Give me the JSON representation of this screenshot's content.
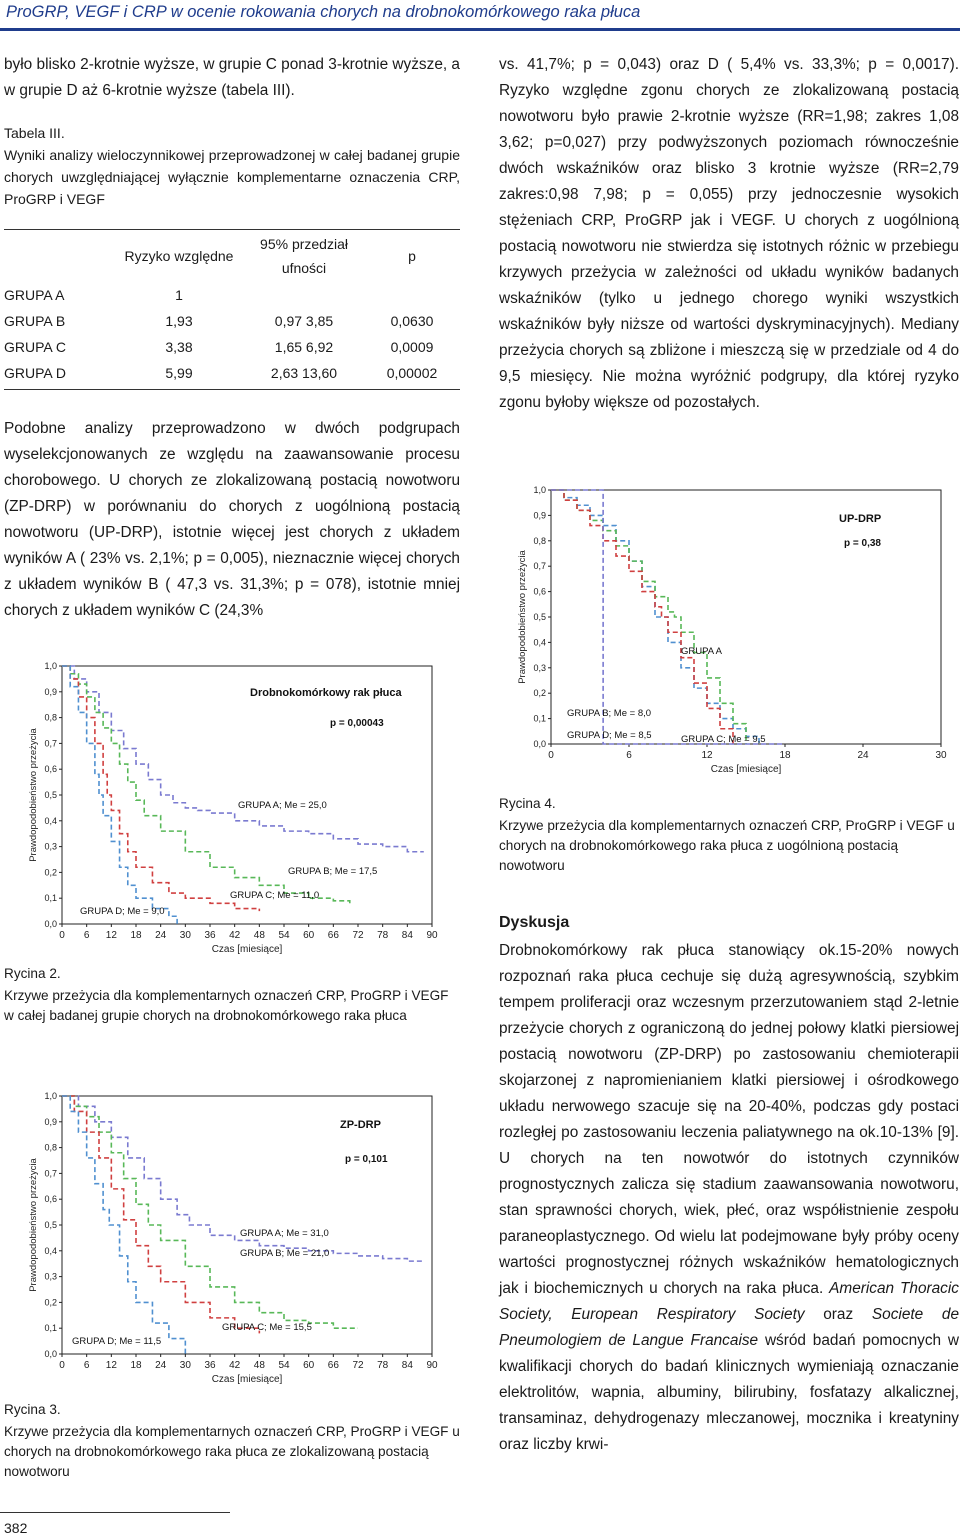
{
  "header": {
    "title": "ProGRP, VEGF i CRP w ocenie rokowania chorych na drobnokomórkowego raka płuca"
  },
  "left": {
    "intro": "było blisko 2-krotnie wyższe, w grupie  C ponad 3-krotnie wyższe,  a w grupie D aż 6-krotnie wyższe (tabela III).",
    "table_label": "Tabela III.",
    "table_caption": "Wyniki analizy wieloczynnikowej przeprowadzonej w całej badanej grupie chorych uwzględniającej wyłącznie komplementarne oznaczenia CRP, ProGRP i VEGF",
    "para2": "Podobne analizy przeprowadzono w dwóch podgrupach wyselekcjonowanych ze względu na zaawansowanie procesu chorobowego. U chorych ze zlokalizowaną postacią nowotworu (ZP-DRP)  w porównaniu do chorych z uogólnioną postacią nowotworu (UP-DRP), istotnie więcej jest chorych z układem wyników A ( 23% vs. 2,1%; p = 0,005), nieznacznie więcej chorych z układem wyników B ( 47,3 vs. 31,3%; p = 078), istotnie mniej chorych z układem wyników C (24,3%",
    "fig2_label": "Rycina 2.",
    "fig2_caption": "Krzywe przeżycia dla komplementarnych oznaczeń CRP, ProGRP i VEGF w całej badanej grupie chorych na drobnokomórkowego raka płuca",
    "fig3_label": "Rycina 3.",
    "fig3_caption": "Krzywe przeżycia dla komplementarnych oznaczeń CRP, ProGRP i VEGF u chorych na drobnokomórkowego raka płuca ze zlokalizowaną postacią nowotworu"
  },
  "table": {
    "headers": [
      "",
      "Ryzyko względne",
      "95% przedział ufności",
      "p"
    ],
    "rows": [
      [
        "GRUPA A",
        "1",
        "",
        ""
      ],
      [
        "GRUPA B",
        "1,93",
        "0,97  3,85",
        "0,0630"
      ],
      [
        "GRUPA C",
        "3,38",
        "1,65  6,92",
        "0,0009"
      ],
      [
        "GRUPA D",
        "5,99",
        "2,63  13,60",
        "0,00002"
      ]
    ]
  },
  "right": {
    "para1": "vs. 41,7%; p = 0,043) oraz D ( 5,4% vs. 33,3%; p = 0,0017). Ryzyko względne zgonu chorych ze zlokalizowaną postacią nowotworu było prawie 2-krotnie wyższe (RR=1,98; zakres 1,08  3,62; p=0,027) przy podwyższonych poziomach równocześnie dwóch wskaźników oraz blisko 3 krotnie wyższe (RR=2,79 zakres:0,98  7,98; p = 0,055) przy jednoczesnie wysokich stężeniach CRP, ProGRP jak i VEGF. U chorych z uogólnioną postacią nowotworu nie stwierdza się istotnych różnic w przebiegu krzywych przeżycia w zależności od układu wyników badanych wskaźników (tylko u jednego chorego wyniki wszystkich wskaźników były niższe od wartości dyskryminacyjnych). Mediany przeżycia chorych są zbliżone i mieszczą się w przedziale od 4 do 9,5 miesięcy. Nie można wyróżnić podgrupy, dla której ryzyko zgonu byłoby większe od pozostałych.",
    "fig4_label": "Rycina 4.",
    "fig4_caption": "Krzywe przeżycia dla komplementarnych oznaczeń CRP, ProGRP i VEGF u chorych na drobnokomórkowego raka płuca z uogólnioną postacią nowotworu",
    "discussion_heading": "Dyskusja",
    "discussion_1": "Drobnokomórkowy rak płuca stanowiący ok.15-20% nowych rozpoznań raka płuca cechuje się dużą agresywnością, szybkim tempem proliferacji oraz wczesnym przerzutowaniem stąd 2-letnie przeżycie chorych z ograniczoną do jednej połowy klatki piersiowej postacią nowotworu (ZP-DRP) po zastosowaniu chemioterapii skojarzonej z napromienianiem klatki piersiowej i ośrodkowego układu nerwowego szacuje się na 20-40%, podczas gdy postaci rozległej po zastosowaniu leczenia paliatywnego na ok.10-13% [9]. U chorych na ten nowotwór do istotnych czynników prognostycznych zalicza się stadium zaawansowania nowotworu, stan sprawności chorych, wiek, płeć, oraz współistnienie zespołu paraneoplastycznego. Od wielu lat podejmowane były próby oceny wartości prognostycznej różnych wskaźników hematologicznych jak i biochemicznych u chorych na raka płuca.",
    "discussion_italic1": "American Thoracic Society, European Respiratory Society",
    "discussion_oraz": "oraz",
    "discussion_italic2": "Societe de Pneumologiem de Langue Francaise",
    "discussion_2": "wśród badań pomocnych w kwalifikacji chorych do badań klinicznych wymieniają oznaczanie elektrolitów, wapnia, albuminy, bilirubiny, fosfatazy alkalicznej, transaminaz, dehydrogenazy mleczanowej, mocznika i kreatyniny oraz liczby krwi-"
  },
  "page_number": "382",
  "chart_data": [
    {
      "type": "line",
      "id": "fig2",
      "title": "Drobnokomórkowy rak płuca",
      "subtitle": "p = 0,00043",
      "xlabel": "Czas [miesiące]",
      "ylabel": "Prawdopodobieństwo przeżycia",
      "xticks": [
        0,
        6,
        12,
        18,
        24,
        30,
        36,
        42,
        48,
        54,
        60,
        66,
        72,
        78,
        84,
        90
      ],
      "yticks": [
        "0,0",
        "0,1",
        "0,2",
        "0,3",
        "0,4",
        "0,5",
        "0,6",
        "0,7",
        "0,8",
        "0,9",
        "1,0"
      ],
      "xlim": [
        0,
        90
      ],
      "ylim": [
        0,
        1
      ],
      "labels": [
        "GRUPA A; Me = 25,0",
        "GRUPA B; Me = 17,5",
        "GRUPA C; Me = 11,0",
        "GRUPA D; Me = 9,0"
      ],
      "series": [
        {
          "color": "#7a7ad0",
          "x": [
            0,
            3,
            6,
            9,
            12,
            15,
            18,
            21,
            24,
            27,
            30,
            33,
            36,
            42,
            48,
            54,
            60,
            66,
            72,
            78,
            84,
            88
          ],
          "y": [
            1,
            0.95,
            0.9,
            0.82,
            0.75,
            0.68,
            0.62,
            0.56,
            0.5,
            0.47,
            0.45,
            0.44,
            0.43,
            0.4,
            0.38,
            0.36,
            0.35,
            0.33,
            0.31,
            0.3,
            0.28,
            0.28
          ]
        },
        {
          "color": "#58b858",
          "x": [
            0,
            2,
            4,
            6,
            8,
            10,
            12,
            14,
            16,
            18,
            20,
            24,
            30,
            36,
            42,
            48,
            54,
            60,
            66,
            70
          ],
          "y": [
            1,
            0.97,
            0.93,
            0.88,
            0.82,
            0.76,
            0.7,
            0.62,
            0.55,
            0.48,
            0.42,
            0.36,
            0.28,
            0.22,
            0.18,
            0.15,
            0.12,
            0.1,
            0.09,
            0.08
          ]
        },
        {
          "color": "#d04040",
          "x": [
            0,
            2,
            4,
            6,
            8,
            10,
            11,
            12,
            14,
            16,
            18,
            22,
            26,
            30,
            36,
            42,
            48
          ],
          "y": [
            1,
            0.95,
            0.88,
            0.8,
            0.7,
            0.58,
            0.5,
            0.44,
            0.35,
            0.28,
            0.22,
            0.16,
            0.12,
            0.1,
            0.08,
            0.06,
            0.05
          ]
        },
        {
          "color": "#5090d0",
          "x": [
            0,
            2,
            4,
            6,
            8,
            9,
            10,
            12,
            14,
            16,
            18,
            22,
            26,
            28
          ],
          "y": [
            1,
            0.92,
            0.82,
            0.7,
            0.58,
            0.5,
            0.42,
            0.32,
            0.22,
            0.15,
            0.1,
            0.06,
            0.03,
            0.0
          ]
        }
      ]
    },
    {
      "type": "line",
      "id": "fig3",
      "title": "ZP-DRP",
      "subtitle": "p = 0,101",
      "xlabel": "Czas [miesiące]",
      "ylabel": "Prawdopodobieństwo przeżycia",
      "xticks": [
        0,
        6,
        12,
        18,
        24,
        30,
        36,
        42,
        48,
        54,
        60,
        66,
        72,
        78,
        84,
        90
      ],
      "yticks": [
        "0,0",
        "0,1",
        "0,2",
        "0,3",
        "0,4",
        "0,5",
        "0,6",
        "0,7",
        "0,8",
        "0,9",
        "1,0"
      ],
      "xlim": [
        0,
        90
      ],
      "ylim": [
        0,
        1
      ],
      "labels": [
        "GRUPA A; Me = 31,0",
        "GRUPA B; Me = 21,0",
        "GRUPA C; Me = 15,5",
        "GRUPA D; Me = 11,5"
      ],
      "series": [
        {
          "color": "#7a7ad0",
          "x": [
            0,
            4,
            8,
            12,
            16,
            20,
            24,
            28,
            31,
            36,
            42,
            48,
            54,
            60,
            66,
            72,
            78,
            84,
            88
          ],
          "y": [
            1,
            0.96,
            0.9,
            0.84,
            0.76,
            0.68,
            0.6,
            0.54,
            0.5,
            0.46,
            0.44,
            0.42,
            0.41,
            0.4,
            0.39,
            0.38,
            0.37,
            0.36,
            0.36
          ]
        },
        {
          "color": "#58b858",
          "x": [
            0,
            3,
            6,
            9,
            12,
            15,
            18,
            21,
            24,
            30,
            36,
            42,
            48,
            54,
            60,
            66,
            72
          ],
          "y": [
            1,
            0.96,
            0.92,
            0.86,
            0.78,
            0.68,
            0.58,
            0.5,
            0.44,
            0.34,
            0.26,
            0.2,
            0.16,
            0.13,
            0.12,
            0.1,
            0.1
          ]
        },
        {
          "color": "#d04040",
          "x": [
            0,
            3,
            6,
            9,
            12,
            15,
            18,
            21,
            24,
            30,
            36,
            42,
            48
          ],
          "y": [
            1,
            0.94,
            0.86,
            0.76,
            0.64,
            0.52,
            0.42,
            0.34,
            0.28,
            0.2,
            0.14,
            0.1,
            0.08
          ]
        },
        {
          "color": "#5090d0",
          "x": [
            0,
            2,
            4,
            6,
            8,
            10,
            11.5,
            14,
            16,
            18,
            22,
            26,
            30
          ],
          "y": [
            1,
            0.94,
            0.86,
            0.76,
            0.66,
            0.56,
            0.5,
            0.38,
            0.28,
            0.2,
            0.12,
            0.06,
            0.0
          ]
        }
      ]
    },
    {
      "type": "line",
      "id": "fig4",
      "title": "UP-DRP",
      "subtitle": "p = 0,38",
      "xlabel": "Czas [miesiące]",
      "ylabel": "Prawdopodobieństwo przeżycia",
      "xticks": [
        0,
        6,
        12,
        18,
        24,
        30
      ],
      "yticks": [
        "0,0",
        "0,1",
        "0,2",
        "0,3",
        "0,4",
        "0,5",
        "0,6",
        "0,7",
        "0,8",
        "0,9",
        "1,0"
      ],
      "xlim": [
        0,
        30
      ],
      "ylim": [
        0,
        1
      ],
      "labels": [
        "GRUPA A",
        "GRUPA B; Me = 8,0",
        "GRUPA C; Me = 9,5",
        "GRUPA D; Me = 8,5"
      ],
      "series": [
        {
          "color": "#5090d0",
          "x": [
            0,
            1,
            2,
            3,
            4,
            5,
            6,
            7,
            8,
            9,
            10,
            11,
            12,
            13,
            14,
            15,
            16
          ],
          "y": [
            1,
            0.97,
            0.94,
            0.9,
            0.86,
            0.8,
            0.72,
            0.62,
            0.5,
            0.4,
            0.3,
            0.22,
            0.16,
            0.1,
            0.06,
            0.03,
            0.0
          ]
        },
        {
          "color": "#58b858",
          "x": [
            0,
            1,
            2,
            3,
            4,
            5,
            6,
            7,
            8,
            9,
            9.5,
            10,
            11,
            12,
            13,
            14,
            15
          ],
          "y": [
            1,
            0.96,
            0.92,
            0.88,
            0.84,
            0.78,
            0.72,
            0.64,
            0.58,
            0.52,
            0.5,
            0.44,
            0.36,
            0.26,
            0.16,
            0.08,
            0.0
          ]
        },
        {
          "color": "#d04040",
          "x": [
            0,
            1,
            2,
            3,
            4,
            5,
            6,
            7,
            8,
            8.5,
            9,
            10,
            11,
            12,
            13,
            14
          ],
          "y": [
            1,
            0.96,
            0.92,
            0.86,
            0.8,
            0.74,
            0.68,
            0.6,
            0.54,
            0.5,
            0.44,
            0.34,
            0.24,
            0.14,
            0.06,
            0.0
          ]
        },
        {
          "color": "#7a7ad0",
          "x": [
            0,
            4,
            4.01,
            18
          ],
          "y": [
            1,
            1,
            0.0,
            0.0
          ]
        }
      ]
    }
  ]
}
